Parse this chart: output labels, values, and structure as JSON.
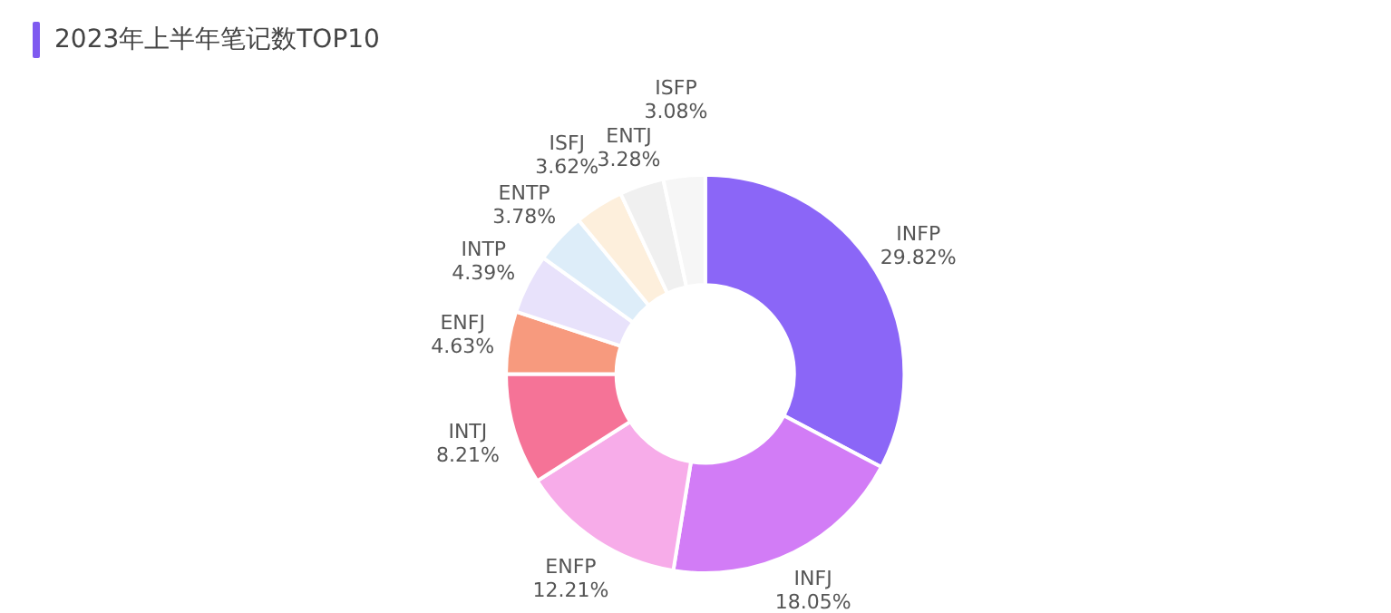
{
  "chart_data": {
    "type": "donut",
    "title": "2023年上半年笔记数TOP10",
    "categories": [
      "INFP",
      "INFJ",
      "ENFP",
      "INTJ",
      "ENFJ",
      "INTP",
      "ENTP",
      "ISFJ",
      "ENTJ",
      "ISFP"
    ],
    "values": [
      29.82,
      18.05,
      12.21,
      8.21,
      4.63,
      4.39,
      3.78,
      3.62,
      3.28,
      3.08
    ],
    "value_labels": [
      "29.82%",
      "18.05%",
      "12.21%",
      "8.21%",
      "4.63%",
      "4.39%",
      "3.78%",
      "3.62%",
      "3.28%",
      "3.08%"
    ],
    "colors": [
      "#8b66f7",
      "#d27cf6",
      "#f7ace9",
      "#f57397",
      "#f79a7e",
      "#e8e2fb",
      "#ddedf9",
      "#fdefdc",
      "#f0f0f0",
      "#f6f6f6"
    ],
    "legend": false
  }
}
